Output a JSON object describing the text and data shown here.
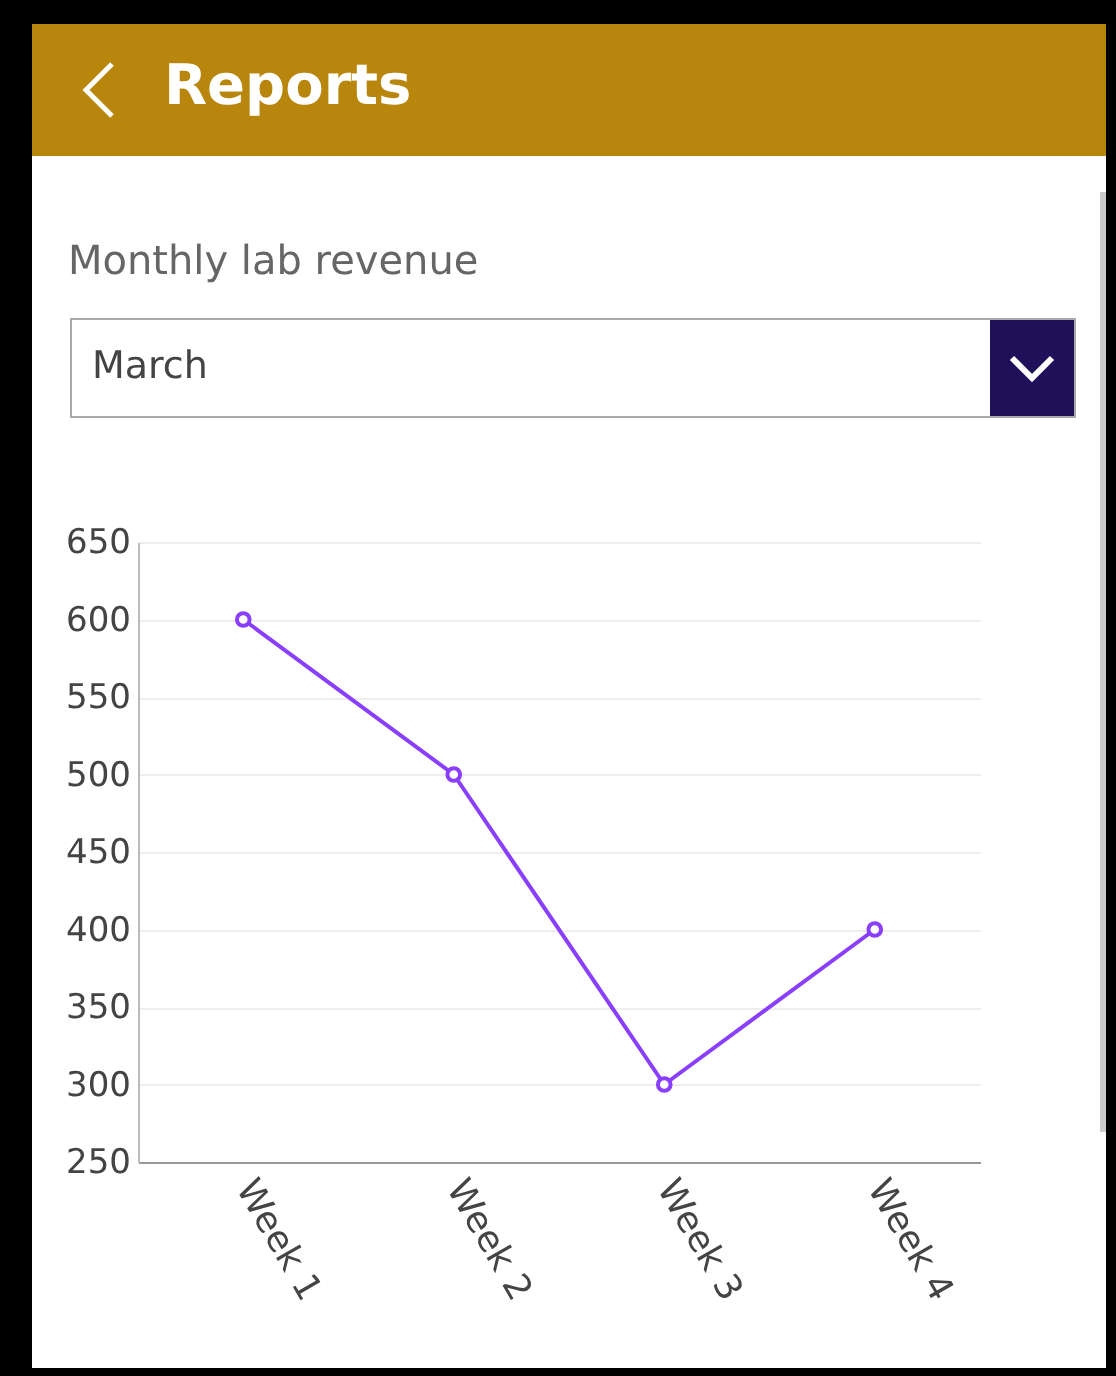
{
  "chart_data": {
    "type": "line",
    "title": "Monthly lab revenue",
    "subtitle": "March",
    "annotations": [
      "Reports"
    ],
    "categories": [
      "Week 1",
      "Week 2",
      "Week 3",
      "Week 4"
    ],
    "series": [
      {
        "color": "#8a3ffc",
        "values": [
          600,
          500,
          300,
          400
        ]
      }
    ],
    "ylim": [
      250,
      650
    ],
    "yticks": [
      250,
      300,
      350,
      400,
      450,
      500,
      550,
      600,
      650
    ],
    "grid": "y",
    "marker": "circle",
    "line_style": "solid",
    "legend": false
  }
}
